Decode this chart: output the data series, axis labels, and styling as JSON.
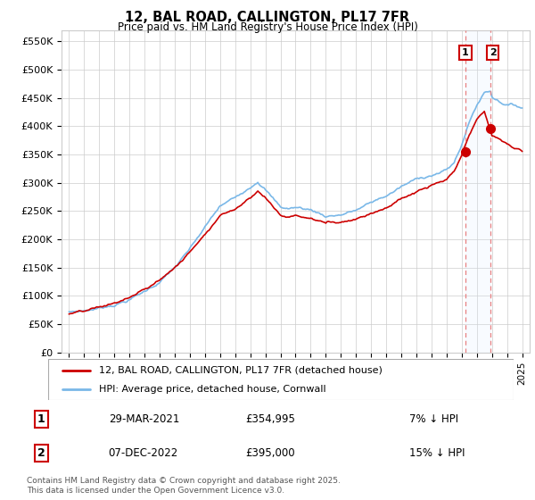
{
  "title": "12, BAL ROAD, CALLINGTON, PL17 7FR",
  "subtitle": "Price paid vs. HM Land Registry's House Price Index (HPI)",
  "ylabel_ticks": [
    "£0",
    "£50K",
    "£100K",
    "£150K",
    "£200K",
    "£250K",
    "£300K",
    "£350K",
    "£400K",
    "£450K",
    "£500K",
    "£550K"
  ],
  "ytick_values": [
    0,
    50000,
    100000,
    150000,
    200000,
    250000,
    300000,
    350000,
    400000,
    450000,
    500000,
    550000
  ],
  "ylim": [
    0,
    570000
  ],
  "xlim": [
    1994.5,
    2025.5
  ],
  "legend_line1": "12, BAL ROAD, CALLINGTON, PL17 7FR (detached house)",
  "legend_line2": "HPI: Average price, detached house, Cornwall",
  "marker1_date": "29-MAR-2021",
  "marker1_price": "£354,995",
  "marker1_hpi": "7% ↓ HPI",
  "marker2_date": "07-DEC-2022",
  "marker2_price": "£395,000",
  "marker2_hpi": "15% ↓ HPI",
  "footnote": "Contains HM Land Registry data © Crown copyright and database right 2025.\nThis data is licensed under the Open Government Licence v3.0.",
  "hpi_color": "#7ab8e8",
  "price_color": "#cc0000",
  "marker_color": "#cc0000",
  "vline_color": "#e88080",
  "shade_color": "#ddeeff",
  "background_color": "#ffffff",
  "grid_color": "#cccccc",
  "sale1_x": 2021.25,
  "sale2_x": 2022.92,
  "sale1_price": 354995,
  "sale2_price": 395000
}
